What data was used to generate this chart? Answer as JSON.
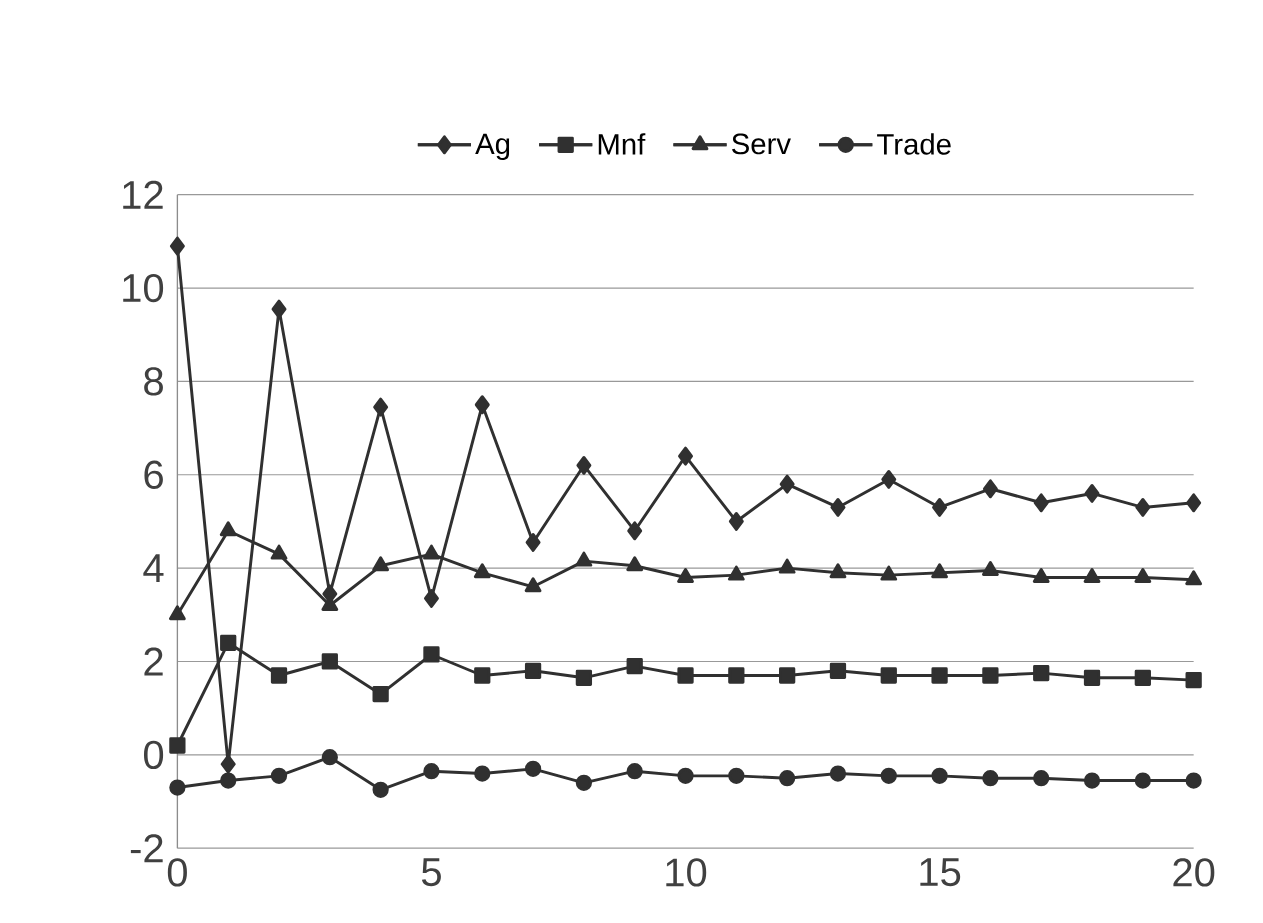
{
  "chart_data": {
    "type": "line",
    "x": [
      0,
      1,
      2,
      3,
      4,
      5,
      6,
      7,
      8,
      9,
      10,
      11,
      12,
      13,
      14,
      15,
      16,
      17,
      18,
      19,
      20
    ],
    "series": [
      {
        "name": "Ag",
        "color": "#303030",
        "marker": "diamond",
        "values": [
          10.9,
          -0.2,
          9.55,
          3.45,
          7.45,
          3.35,
          7.5,
          4.55,
          6.2,
          4.8,
          6.4,
          5.0,
          5.8,
          5.3,
          5.9,
          5.3,
          5.7,
          5.4,
          5.6,
          5.3,
          5.4
        ]
      },
      {
        "name": "Mnf",
        "color": "#303030",
        "marker": "square",
        "values": [
          0.2,
          2.4,
          1.7,
          2.0,
          1.3,
          2.15,
          1.7,
          1.8,
          1.65,
          1.9,
          1.7,
          1.7,
          1.7,
          1.8,
          1.7,
          1.7,
          1.7,
          1.75,
          1.65,
          1.65,
          1.6
        ]
      },
      {
        "name": "Serv",
        "color": "#303030",
        "marker": "triangle",
        "values": [
          3.0,
          4.8,
          4.3,
          3.2,
          4.05,
          4.3,
          3.9,
          3.6,
          4.15,
          4.05,
          3.8,
          3.85,
          4.0,
          3.9,
          3.85,
          3.9,
          3.95,
          3.8,
          3.8,
          3.8,
          3.75
        ]
      },
      {
        "name": "Trade",
        "color": "#303030",
        "marker": "circle",
        "values": [
          -0.7,
          -0.55,
          -0.45,
          -0.05,
          -0.75,
          -0.35,
          -0.4,
          -0.3,
          -0.6,
          -0.35,
          -0.45,
          -0.45,
          -0.5,
          -0.4,
          -0.45,
          -0.45,
          -0.5,
          -0.5,
          -0.55,
          -0.55,
          -0.55
        ]
      }
    ],
    "xlim": [
      0,
      20
    ],
    "xticks": [
      0,
      5,
      10,
      15,
      20
    ],
    "ylim": [
      -2,
      12
    ],
    "yticks": [
      -2,
      0,
      2,
      4,
      6,
      8,
      10,
      12
    ],
    "grid": "y",
    "legend": "top",
    "line_style": "solid"
  }
}
